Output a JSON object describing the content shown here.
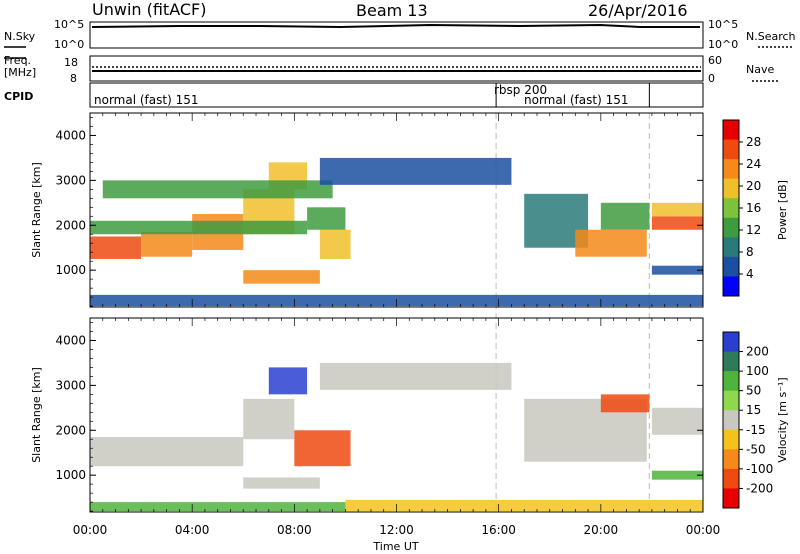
{
  "header": {
    "station": "Unwin (fitACF)",
    "beam": "Beam 13",
    "date": "26/Apr/2016"
  },
  "noise_panel": {
    "left_label": "N.Sky",
    "right_label": "N.Search",
    "left_ticks": [
      "10^5",
      "10^0"
    ],
    "right_ticks": [
      "10^5",
      "10^0"
    ]
  },
  "freq_panel": {
    "left_label_1": "Freq.",
    "left_label_2": "[MHz]",
    "right_label": "Nave",
    "left_ticks": [
      "18",
      "8"
    ],
    "right_ticks": [
      "60",
      "0"
    ]
  },
  "cpid_panel": {
    "label": "CPID",
    "segments": [
      {
        "name": "normal (fast) 151",
        "start_hour": 0,
        "end_hour": 15.9
      },
      {
        "name": "rbsp 200",
        "start_hour": 15.9,
        "end_hour": 16.2
      },
      {
        "name": "normal (fast) 151",
        "start_hour": 16.2,
        "end_hour": 21.9
      }
    ],
    "label_seg1": "normal (fast) 151",
    "label_seg2": "rbsp 200",
    "label_seg3": "normal (fast) 151"
  },
  "power_panel": {
    "ylabel": "Slant Range [km]",
    "colorbar_label": "Power [dB]",
    "colorbar_ticks": [
      "28",
      "24",
      "20",
      "16",
      "12",
      "8",
      "4"
    ],
    "colors": [
      "#0000ff",
      "#1b4fa0",
      "#2b7a7a",
      "#3f9b3f",
      "#7cc23a",
      "#f0c02c",
      "#f58a1a",
      "#ef4a10",
      "#e80000"
    ]
  },
  "velocity_panel": {
    "ylabel": "Slant Range [km]",
    "colorbar_label": "Velocity [m s⁻¹]",
    "colorbar_ticks": [
      "200",
      "100",
      "50",
      "15",
      "-15",
      "-50",
      "-100",
      "-200"
    ],
    "colors": [
      "#2a3fd0",
      "#2f7a5a",
      "#4fb43c",
      "#8ed84e",
      "#c8c8c0",
      "#f5c21a",
      "#f58a1a",
      "#ef4a10",
      "#e80000"
    ]
  },
  "x_axis": {
    "title": "Time UT",
    "ticks": [
      "00:00",
      "04:00",
      "08:00",
      "12:00",
      "16:00",
      "20:00",
      "00:00"
    ]
  },
  "chart_data": {
    "type": "heatmap",
    "x_range_hours": [
      0,
      24
    ],
    "y_range_km": [
      180,
      4500
    ],
    "y_ticks_km": [
      1000,
      2000,
      3000,
      4000
    ],
    "y_tick_labels": [
      "1000",
      "2000",
      "3000",
      "4000"
    ],
    "power_regions": [
      {
        "t0": 0.0,
        "t1": 2.0,
        "r0": 1250,
        "r1": 1750,
        "v": 26
      },
      {
        "t0": 2.0,
        "t1": 4.0,
        "r0": 1300,
        "r1": 1850,
        "v": 24
      },
      {
        "t0": 4.0,
        "t1": 6.0,
        "r0": 1450,
        "r1": 2250,
        "v": 22
      },
      {
        "t0": 6.0,
        "t1": 8.0,
        "r0": 1800,
        "r1": 2800,
        "v": 20
      },
      {
        "t0": 7.0,
        "t1": 8.5,
        "r0": 2800,
        "r1": 3400,
        "v": 18
      },
      {
        "t0": 0.0,
        "t1": 8.5,
        "r0": 1800,
        "r1": 2100,
        "v": 12
      },
      {
        "t0": 0.5,
        "t1": 9.5,
        "r0": 2600,
        "r1": 3000,
        "v": 14
      },
      {
        "t0": 6.0,
        "t1": 9.0,
        "r0": 700,
        "r1": 1000,
        "v": 24
      },
      {
        "t0": 9.0,
        "t1": 10.2,
        "r0": 1250,
        "r1": 1900,
        "v": 20
      },
      {
        "t0": 8.5,
        "t1": 10.0,
        "r0": 1900,
        "r1": 2400,
        "v": 14
      },
      {
        "t0": 9.0,
        "t1": 16.5,
        "r0": 2900,
        "r1": 3500,
        "v": 6
      },
      {
        "t0": 17.0,
        "t1": 19.5,
        "r0": 1500,
        "r1": 2700,
        "v": 10
      },
      {
        "t0": 19.0,
        "t1": 21.8,
        "r0": 1300,
        "r1": 1900,
        "v": 22
      },
      {
        "t0": 20.0,
        "t1": 21.9,
        "r0": 1900,
        "r1": 2500,
        "v": 14
      },
      {
        "t0": 22.0,
        "t1": 24.0,
        "r0": 1900,
        "r1": 2200,
        "v": 26
      },
      {
        "t0": 22.0,
        "t1": 24.0,
        "r0": 2200,
        "r1": 2500,
        "v": 18
      },
      {
        "t0": 22.0,
        "t1": 24.0,
        "r0": 900,
        "r1": 1100,
        "v": 6
      },
      {
        "t0": 0.0,
        "t1": 24.0,
        "r0": 200,
        "r1": 450,
        "v": 6
      }
    ],
    "velocity_regions": [
      {
        "t0": 0.0,
        "t1": 6.0,
        "r0": 1200,
        "r1": 1850,
        "v": 0
      },
      {
        "t0": 6.0,
        "t1": 8.0,
        "r0": 1800,
        "r1": 2700,
        "v": 0
      },
      {
        "t0": 7.0,
        "t1": 8.5,
        "r0": 2800,
        "r1": 3400,
        "v": 150
      },
      {
        "t0": 8.0,
        "t1": 10.2,
        "r0": 1200,
        "r1": 2000,
        "v": -150
      },
      {
        "t0": 6.0,
        "t1": 9.0,
        "r0": 700,
        "r1": 950,
        "v": 0
      },
      {
        "t0": 9.0,
        "t1": 16.5,
        "r0": 2900,
        "r1": 3500,
        "v": 0
      },
      {
        "t0": 17.0,
        "t1": 21.8,
        "r0": 1300,
        "r1": 2700,
        "v": 0
      },
      {
        "t0": 20.0,
        "t1": 21.9,
        "r0": 2400,
        "r1": 2800,
        "v": -150
      },
      {
        "t0": 22.0,
        "t1": 24.0,
        "r0": 1900,
        "r1": 2500,
        "v": 0
      },
      {
        "t0": 22.0,
        "t1": 24.0,
        "r0": 900,
        "r1": 1100,
        "v": 40
      },
      {
        "t0": 0.0,
        "t1": 10.0,
        "r0": 200,
        "r1": 400,
        "v": 40
      },
      {
        "t0": 10.0,
        "t1": 24.0,
        "r0": 200,
        "r1": 450,
        "v": -30
      }
    ]
  }
}
